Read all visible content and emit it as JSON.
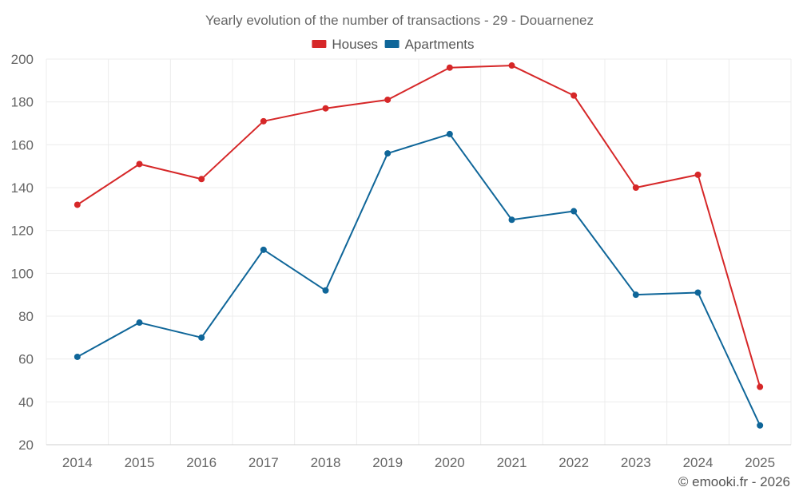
{
  "chart_data": {
    "type": "line",
    "title": "Yearly evolution of the number of transactions - 29 - Douarnenez",
    "categories": [
      "2014",
      "2015",
      "2016",
      "2017",
      "2018",
      "2019",
      "2020",
      "2021",
      "2022",
      "2023",
      "2024",
      "2025"
    ],
    "series": [
      {
        "name": "Houses",
        "color": "#d62728",
        "values": [
          132,
          151,
          144,
          171,
          177,
          181,
          196,
          197,
          183,
          140,
          146,
          47
        ]
      },
      {
        "name": "Apartments",
        "color": "#0f6699",
        "values": [
          61,
          77,
          70,
          111,
          92,
          156,
          165,
          125,
          129,
          90,
          91,
          29
        ]
      }
    ],
    "ylim": [
      20,
      200
    ],
    "yticks": [
      20,
      40,
      60,
      80,
      100,
      120,
      140,
      160,
      180,
      200
    ],
    "grid": true,
    "legend": "top-center",
    "xlabel": "",
    "ylabel": ""
  },
  "credit": "© emooki.fr - 2026"
}
